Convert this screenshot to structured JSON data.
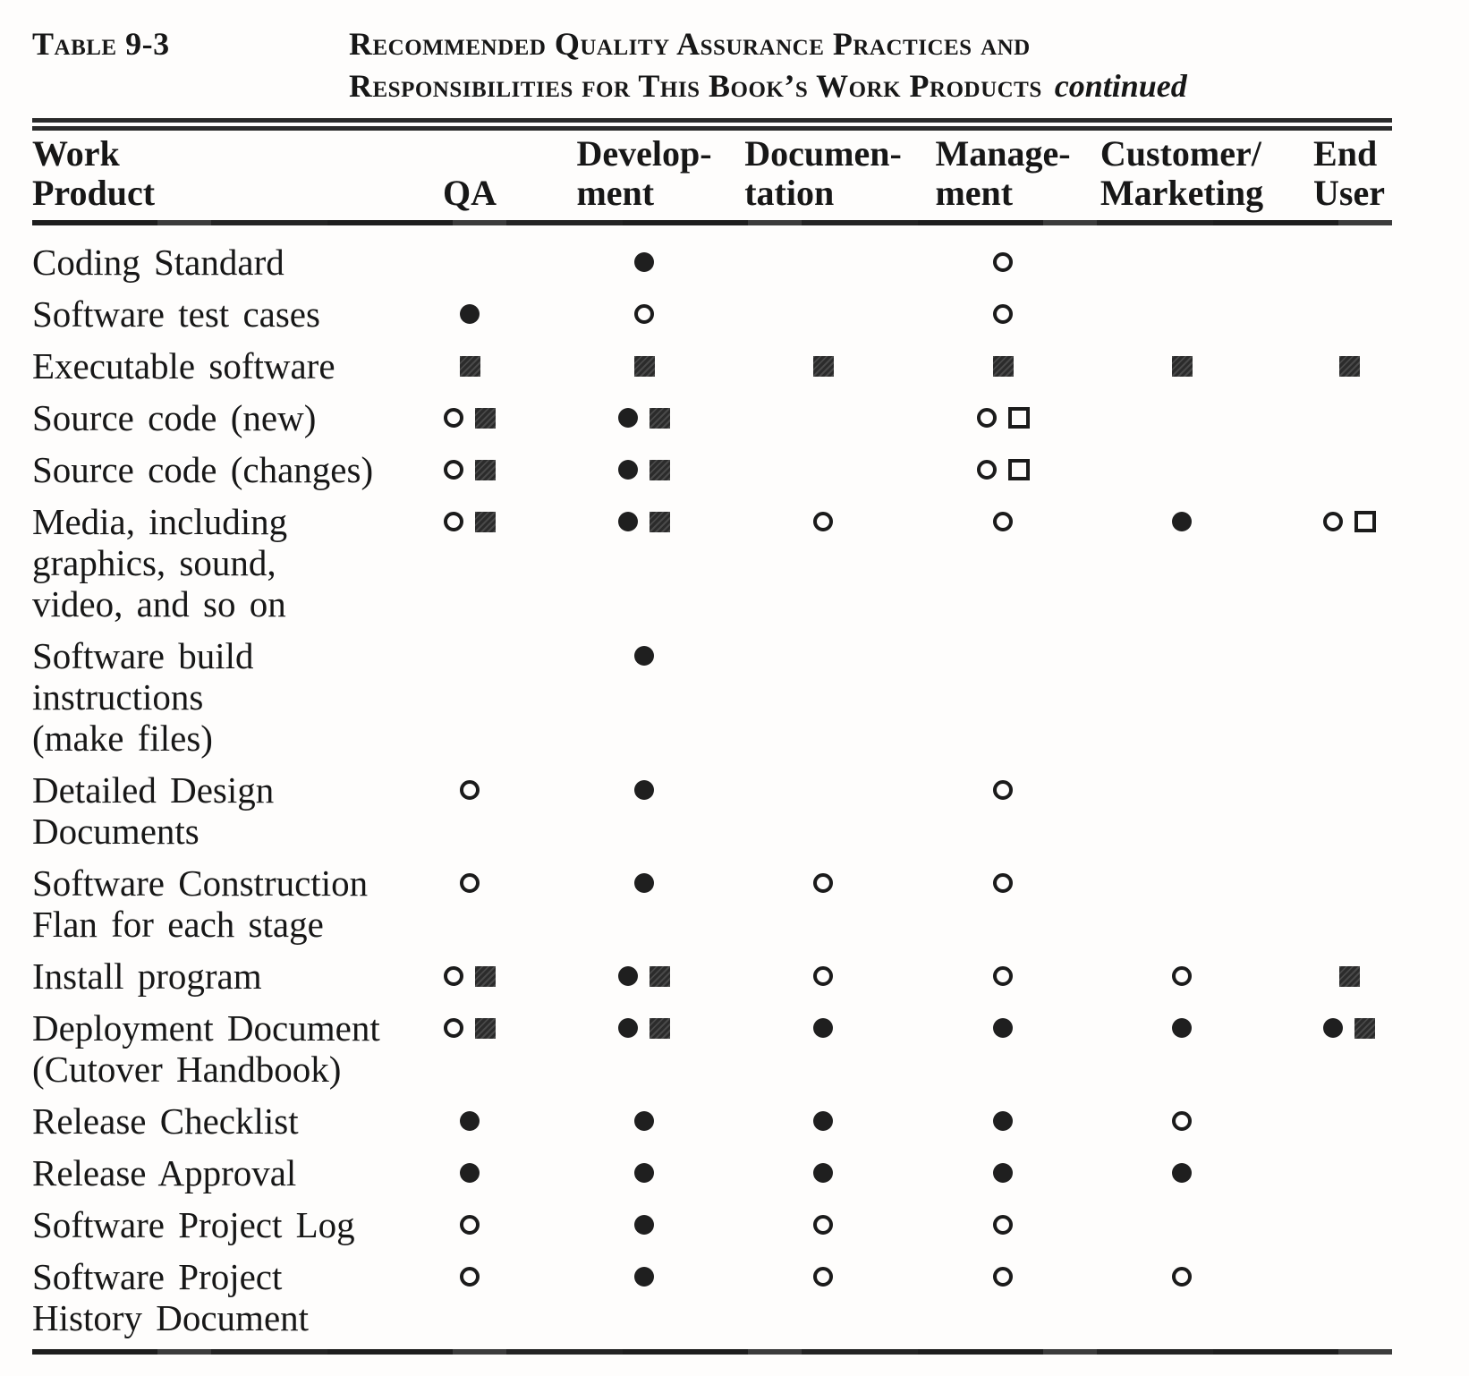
{
  "caption": {
    "label": "Table 9-3",
    "title_line1": "Recommended Quality Assurance Practices and",
    "title_line2": "Responsibilities for This Book’s Work Products",
    "continued": "continued"
  },
  "colors": {
    "paper": "#fefdfc",
    "ink": "#171717"
  },
  "header": {
    "columns": [
      {
        "key": "work_product",
        "lines": [
          "Work",
          "Product"
        ]
      },
      {
        "key": "qa",
        "lines": [
          "QA"
        ]
      },
      {
        "key": "development",
        "lines": [
          "Develop-",
          "ment"
        ]
      },
      {
        "key": "documentation",
        "lines": [
          "Documen-",
          "tation"
        ]
      },
      {
        "key": "management",
        "lines": [
          "Manage-",
          "ment"
        ]
      },
      {
        "key": "customer_marketing",
        "lines": [
          "Customer/",
          "Marketing"
        ]
      },
      {
        "key": "end_user",
        "lines": [
          "End",
          "User"
        ]
      }
    ]
  },
  "symbols": {
    "filled_circle": "●",
    "open_circle": "○",
    "filled_square": "■",
    "open_square": "□"
  },
  "rows": [
    {
      "lines": [
        "Coding Standard"
      ],
      "cells": [
        [],
        [
          "filled_circle"
        ],
        [],
        [
          "open_circle"
        ],
        [],
        []
      ]
    },
    {
      "lines": [
        "Software test cases"
      ],
      "cells": [
        [
          "filled_circle"
        ],
        [
          "open_circle"
        ],
        [],
        [
          "open_circle"
        ],
        [],
        []
      ]
    },
    {
      "lines": [
        "Executable software"
      ],
      "cells": [
        [
          "filled_square"
        ],
        [
          "filled_square"
        ],
        [
          "filled_square"
        ],
        [
          "filled_square"
        ],
        [
          "filled_square"
        ],
        [
          "filled_square"
        ]
      ]
    },
    {
      "lines": [
        "Source code (new)"
      ],
      "cells": [
        [
          "open_circle",
          "filled_square"
        ],
        [
          "filled_circle",
          "filled_square"
        ],
        [],
        [
          "open_circle",
          "open_square"
        ],
        [],
        []
      ]
    },
    {
      "lines": [
        "Source code (changes)"
      ],
      "cells": [
        [
          "open_circle",
          "filled_square"
        ],
        [
          "filled_circle",
          "filled_square"
        ],
        [],
        [
          "open_circle",
          "open_square"
        ],
        [],
        []
      ]
    },
    {
      "lines": [
        "Media, including",
        "graphics, sound,",
        "video, and so on"
      ],
      "cells": [
        [
          "open_circle",
          "filled_square"
        ],
        [
          "filled_circle",
          "filled_square"
        ],
        [
          "open_circle"
        ],
        [
          "open_circle"
        ],
        [
          "filled_circle"
        ],
        [
          "open_circle",
          "open_square"
        ]
      ]
    },
    {
      "lines": [
        "Software build",
        "instructions",
        "(make files)"
      ],
      "cells": [
        [],
        [
          "filled_circle"
        ],
        [],
        [],
        [],
        []
      ]
    },
    {
      "lines": [
        "Detailed Design",
        "Documents"
      ],
      "cells": [
        [
          "open_circle"
        ],
        [
          "filled_circle"
        ],
        [],
        [
          "open_circle"
        ],
        [],
        []
      ]
    },
    {
      "lines": [
        "Software Construction",
        "Flan for each stage"
      ],
      "cells": [
        [
          "open_circle"
        ],
        [
          "filled_circle"
        ],
        [
          "open_circle"
        ],
        [
          "open_circle"
        ],
        [],
        []
      ]
    },
    {
      "lines": [
        "Install program"
      ],
      "cells": [
        [
          "open_circle",
          "filled_square"
        ],
        [
          "filled_circle",
          "filled_square"
        ],
        [
          "open_circle"
        ],
        [
          "open_circle"
        ],
        [
          "open_circle"
        ],
        [
          "filled_square"
        ]
      ]
    },
    {
      "lines": [
        "Deployment Document",
        "(Cutover Handbook)"
      ],
      "cells": [
        [
          "open_circle",
          "filled_square"
        ],
        [
          "filled_circle",
          "filled_square"
        ],
        [
          "filled_circle"
        ],
        [
          "filled_circle"
        ],
        [
          "filled_circle"
        ],
        [
          "filled_circle",
          "filled_square"
        ]
      ]
    },
    {
      "lines": [
        "Release Checklist"
      ],
      "cells": [
        [
          "filled_circle"
        ],
        [
          "filled_circle"
        ],
        [
          "filled_circle"
        ],
        [
          "filled_circle"
        ],
        [
          "open_circle"
        ],
        []
      ]
    },
    {
      "lines": [
        "Release Approval"
      ],
      "cells": [
        [
          "filled_circle"
        ],
        [
          "filled_circle"
        ],
        [
          "filled_circle"
        ],
        [
          "filled_circle"
        ],
        [
          "filled_circle"
        ],
        []
      ]
    },
    {
      "lines": [
        "Software Project Log"
      ],
      "cells": [
        [
          "open_circle"
        ],
        [
          "filled_circle"
        ],
        [
          "open_circle"
        ],
        [
          "open_circle"
        ],
        [],
        []
      ]
    },
    {
      "lines": [
        "Software Project",
        "History Document"
      ],
      "cells": [
        [
          "open_circle"
        ],
        [
          "filled_circle"
        ],
        [
          "open_circle"
        ],
        [
          "open_circle"
        ],
        [
          "open_circle"
        ],
        []
      ]
    }
  ]
}
